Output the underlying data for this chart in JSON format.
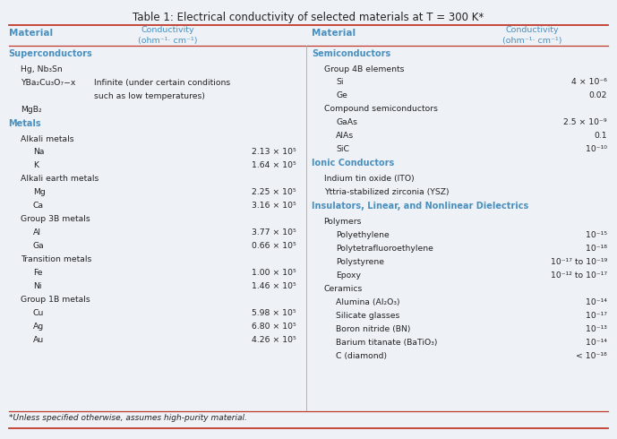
{
  "title": "Table 1: Electrical conductivity of selected materials at T = 300 K*",
  "footnote": "*Unless specified otherwise, assumes high-purity material.",
  "blue_color": "#4A90BF",
  "text_color": "#222222",
  "bg_color": "#EEF2F7",
  "line_color": "#C0392B",
  "left_sections": [
    {
      "type": "header",
      "text": "Superconductors",
      "indent": 0
    },
    {
      "type": "row",
      "material": "Hg, Nb₃Sn",
      "value": "",
      "indent": 1
    },
    {
      "type": "row_multi",
      "material": "YBa₂Cu₃O₇−x",
      "value1": "Infinite (under certain conditions",
      "value2": "such as low temperatures)",
      "indent": 1
    },
    {
      "type": "row",
      "material": "MgB₂",
      "value": "",
      "indent": 1
    },
    {
      "type": "header",
      "text": "Metals",
      "indent": 0
    },
    {
      "type": "subheader",
      "text": "Alkali metals",
      "indent": 1
    },
    {
      "type": "row",
      "material": "Na",
      "value": "2.13 × 10⁵",
      "indent": 2
    },
    {
      "type": "row",
      "material": "K",
      "value": "1.64 × 10⁵",
      "indent": 2
    },
    {
      "type": "subheader",
      "text": "Alkali earth metals",
      "indent": 1
    },
    {
      "type": "row",
      "material": "Mg",
      "value": "2.25 × 10⁵",
      "indent": 2
    },
    {
      "type": "row",
      "material": "Ca",
      "value": "3.16 × 10⁵",
      "indent": 2
    },
    {
      "type": "subheader",
      "text": "Group 3B metals",
      "indent": 1
    },
    {
      "type": "row",
      "material": "Al",
      "value": "3.77 × 10⁵",
      "indent": 2
    },
    {
      "type": "row",
      "material": "Ga",
      "value": "0.66 × 10⁵",
      "indent": 2
    },
    {
      "type": "subheader",
      "text": "Transition metals",
      "indent": 1
    },
    {
      "type": "row",
      "material": "Fe",
      "value": "1.00 × 10⁵",
      "indent": 2
    },
    {
      "type": "row",
      "material": "Ni",
      "value": "1.46 × 10⁵",
      "indent": 2
    },
    {
      "type": "subheader",
      "text": "Group 1B metals",
      "indent": 1
    },
    {
      "type": "row",
      "material": "Cu",
      "value": "5.98 × 10⁵",
      "indent": 2
    },
    {
      "type": "row",
      "material": "Ag",
      "value": "6.80 × 10⁵",
      "indent": 2
    },
    {
      "type": "row",
      "material": "Au",
      "value": "4.26 × 10⁵",
      "indent": 2
    }
  ],
  "right_sections": [
    {
      "type": "header",
      "text": "Semiconductors",
      "indent": 0
    },
    {
      "type": "subheader",
      "text": "Group 4B elements",
      "indent": 1
    },
    {
      "type": "row",
      "material": "Si",
      "value": "4 × 10⁻⁶",
      "indent": 2
    },
    {
      "type": "row",
      "material": "Ge",
      "value": "0.02",
      "indent": 2
    },
    {
      "type": "subheader",
      "text": "Compound semiconductors",
      "indent": 1
    },
    {
      "type": "row",
      "material": "GaAs",
      "value": "2.5 × 10⁻⁹",
      "indent": 2
    },
    {
      "type": "row",
      "material": "AlAs",
      "value": "0.1",
      "indent": 2
    },
    {
      "type": "row",
      "material": "SiC",
      "value": "10⁻¹⁰",
      "indent": 2
    },
    {
      "type": "header",
      "text": "Ionic Conductors",
      "indent": 0
    },
    {
      "type": "row",
      "material": "Indium tin oxide (ITO)",
      "value": "",
      "indent": 1
    },
    {
      "type": "row",
      "material": "Yttria-stabilized zirconia (YSZ)",
      "value": "",
      "indent": 1
    },
    {
      "type": "header",
      "text": "Insulators, Linear, and Nonlinear Dielectrics",
      "indent": 0
    },
    {
      "type": "subheader",
      "text": "Polymers",
      "indent": 1
    },
    {
      "type": "row",
      "material": "Polyethylene",
      "value": "10⁻¹⁵",
      "indent": 2
    },
    {
      "type": "row",
      "material": "Polytetrafluoroethylene",
      "value": "10⁻¹⁸",
      "indent": 2
    },
    {
      "type": "row",
      "material": "Polystyrene",
      "value": "10⁻¹⁷ to 10⁻¹⁹",
      "indent": 2
    },
    {
      "type": "row",
      "material": "Epoxy",
      "value": "10⁻¹² to 10⁻¹⁷",
      "indent": 2
    },
    {
      "type": "subheader",
      "text": "Ceramics",
      "indent": 1
    },
    {
      "type": "row",
      "material": "Alumina (Al₂O₃)",
      "value": "10⁻¹⁴",
      "indent": 2
    },
    {
      "type": "row",
      "material": "Silicate glasses",
      "value": "10⁻¹⁷",
      "indent": 2
    },
    {
      "type": "row",
      "material": "Boron nitride (BN)",
      "value": "10⁻¹³",
      "indent": 2
    },
    {
      "type": "row",
      "material": "Barium titanate (BaTiO₃)",
      "value": "10⁻¹⁴",
      "indent": 2
    },
    {
      "type": "row",
      "material": "C (diamond)",
      "value": "< 10⁻¹⁸",
      "indent": 2
    }
  ]
}
